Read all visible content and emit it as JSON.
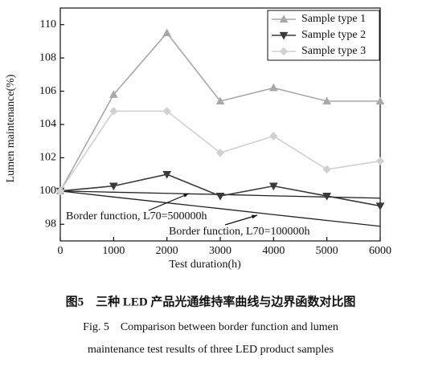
{
  "chart_data": {
    "type": "line",
    "xlabel": "Test duration(h)",
    "ylabel": "Lumen maintenance(%)",
    "x": [
      0,
      1000,
      2000,
      3000,
      4000,
      5000,
      6000
    ],
    "xlim": [
      0,
      6000
    ],
    "xticks": [
      0,
      1000,
      2000,
      3000,
      4000,
      5000,
      6000
    ],
    "ylim": [
      97,
      111
    ],
    "yticks": [
      98,
      100,
      102,
      104,
      106,
      108,
      110
    ],
    "legend": "upper right",
    "series": [
      {
        "name": "Sample type 1",
        "color": "#a8a8a8",
        "marker": "triangle-up",
        "values": [
          100,
          105.8,
          109.5,
          105.4,
          106.2,
          105.4,
          105.4
        ]
      },
      {
        "name": "Sample type 2",
        "color": "#3a3a3a",
        "marker": "triangle-down",
        "values": [
          100,
          100.3,
          101,
          99.7,
          100.3,
          99.7,
          99.1
        ]
      },
      {
        "name": "Sample type 3",
        "color": "#d0d0d0",
        "marker": "diamond",
        "values": [
          100,
          104.8,
          104.8,
          102.3,
          103.3,
          101.3,
          101.8
        ]
      }
    ],
    "curves": [
      {
        "label": "Border function, L70=500000h",
        "color": "#222",
        "values": [
          100,
          99.93,
          99.86,
          99.79,
          99.71,
          99.64,
          99.57
        ]
      },
      {
        "label": "Border function, L70=100000h",
        "color": "#222",
        "values": [
          100,
          99.64,
          99.29,
          98.94,
          98.58,
          98.23,
          97.88
        ]
      }
    ]
  },
  "caption": {
    "cn": "图5　三种 LED 产品光通维持率曲线与边界函数对比图",
    "en": [
      "Fig. 5　Comparison between border function and lumen",
      "maintenance test results of three LED product samples"
    ]
  }
}
